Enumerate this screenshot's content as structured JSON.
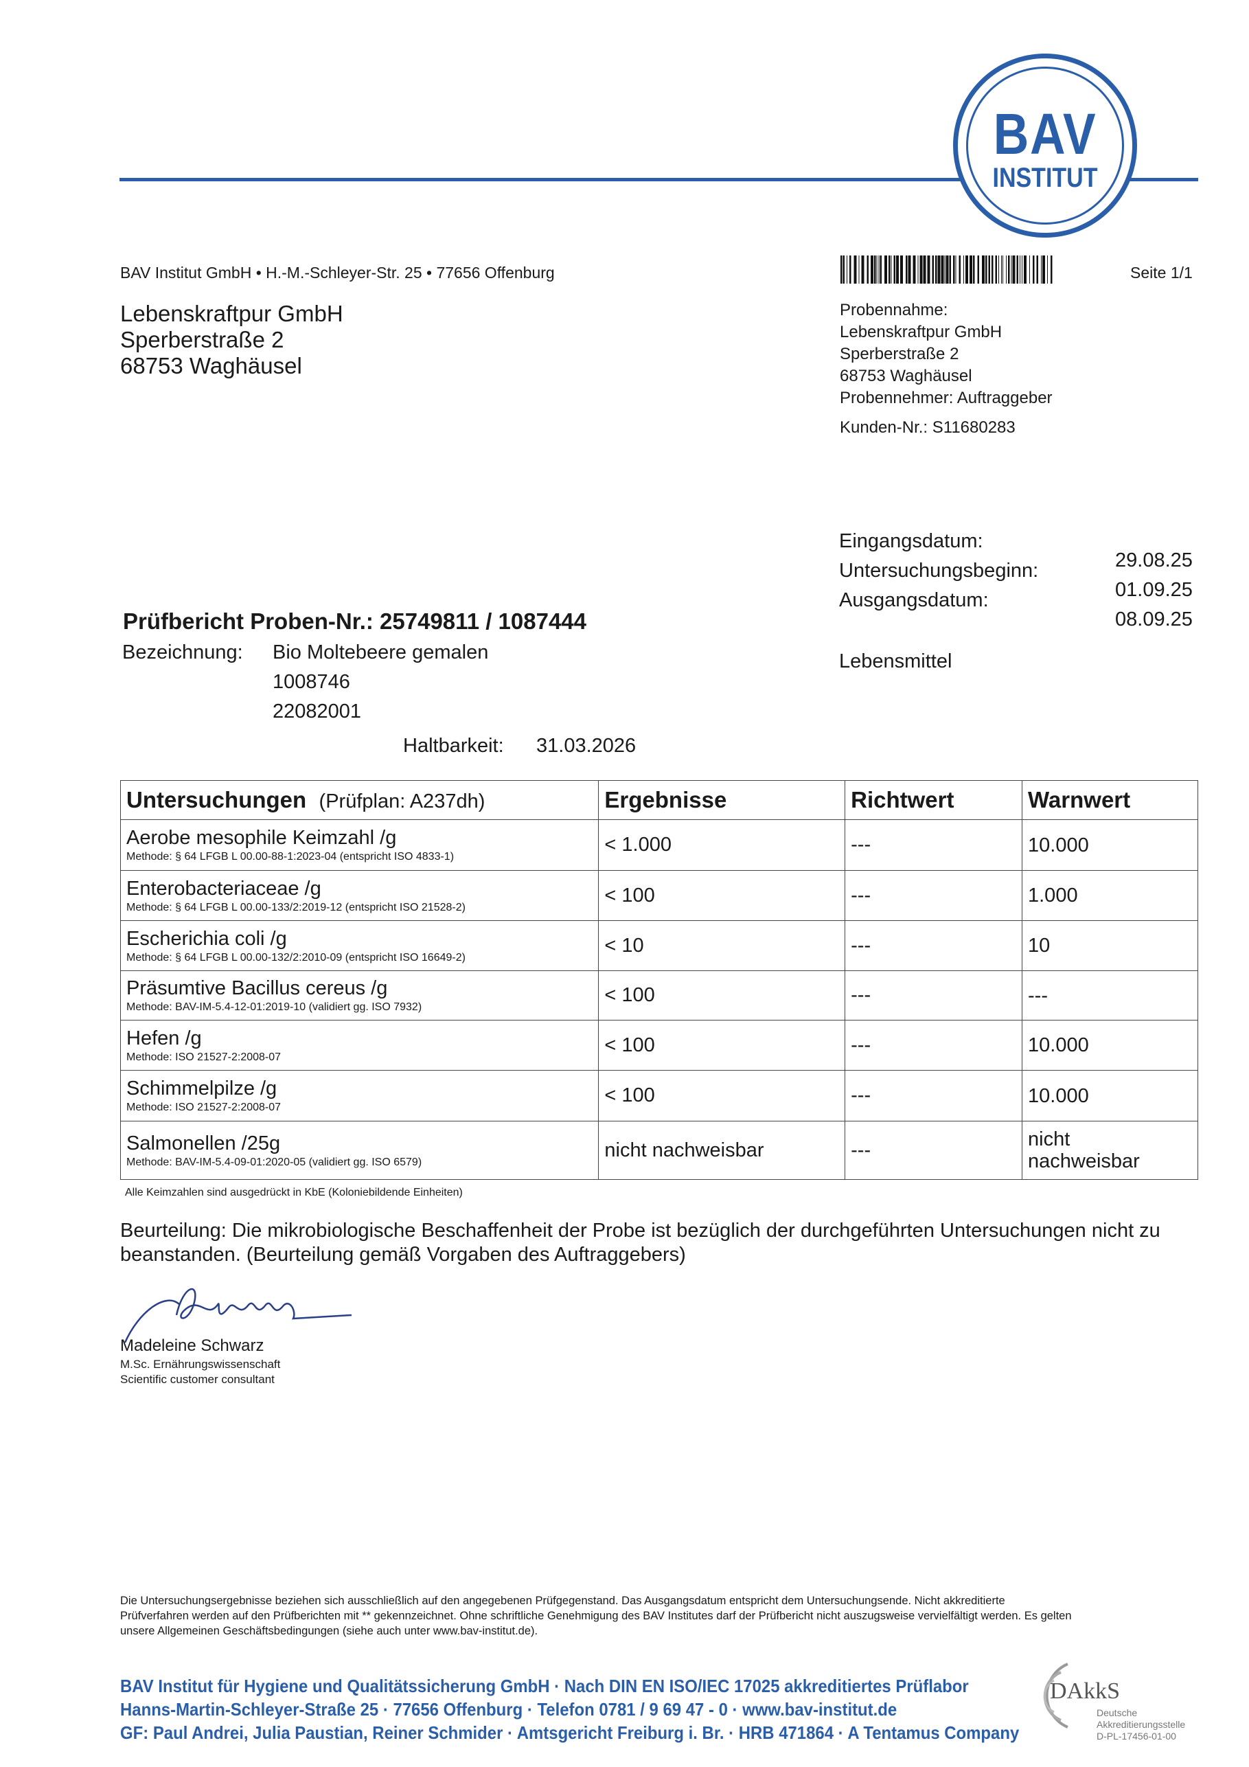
{
  "logo": {
    "line1": "BAV",
    "line2": "INSTITUT"
  },
  "sender": "BAV Institut GmbH • H.-M.-Schleyer-Str. 25 • 77656 Offenburg",
  "page": "Seite 1/1",
  "recipient": [
    "Lebenskraftpur GmbH",
    "Sperberstraße 2",
    "68753 Waghäusel"
  ],
  "sampling": [
    "Probennahme:",
    "Lebenskraftpur GmbH",
    "Sperberstraße 2",
    "68753 Waghäusel",
    "Probennehmer: Auftraggeber"
  ],
  "customer_no": "Kunden-Nr.: S11680283",
  "dates": {
    "labels": [
      "Eingangsdatum:",
      "Untersuchungsbeginn:",
      "Ausgangsdatum:"
    ],
    "values": [
      "29.08.25",
      "01.09.25",
      "08.09.25"
    ]
  },
  "category": "Lebensmittel",
  "report_title": "Prüfbericht Proben-Nr.: 25749811 / 1087444",
  "designation": {
    "label": "Bezeichnung:",
    "lines": [
      "Bio Moltebeere gemalen",
      "1008746",
      "22082001"
    ]
  },
  "shelf_life": {
    "label": "Haltbarkeit:",
    "value": "31.03.2026"
  },
  "table": {
    "headers": {
      "test": "Untersuchungen",
      "plan": "(Prüfplan: A237dh)",
      "result": "Ergebnisse",
      "guide": "Richtwert",
      "warn": "Warnwert"
    },
    "rows": [
      {
        "name": "Aerobe mesophile Keimzahl /g",
        "method": "Methode: § 64 LFGB L 00.00-88-1:2023-04 (entspricht ISO 4833-1)",
        "result": "< 1.000",
        "guide": "---",
        "warn": "10.000"
      },
      {
        "name": "Enterobacteriaceae /g",
        "method": "Methode: § 64 LFGB L 00.00-133/2:2019-12 (entspricht ISO 21528-2)",
        "result": "< 100",
        "guide": "---",
        "warn": "1.000"
      },
      {
        "name": "Escherichia coli /g",
        "method": "Methode: § 64 LFGB L 00.00-132/2:2010-09 (entspricht ISO 16649-2)",
        "result": "< 10",
        "guide": "---",
        "warn": "10"
      },
      {
        "name": "Präsumtive Bacillus cereus /g",
        "method": "Methode: BAV-IM-5.4-12-01:2019-10 (validiert gg. ISO 7932)",
        "result": "< 100",
        "guide": "---",
        "warn": "---"
      },
      {
        "name": "Hefen /g",
        "method": "Methode: ISO 21527-2:2008-07",
        "result": "< 100",
        "guide": "---",
        "warn": "10.000"
      },
      {
        "name": "Schimmelpilze /g",
        "method": "Methode: ISO 21527-2:2008-07",
        "result": "< 100",
        "guide": "---",
        "warn": "10.000"
      },
      {
        "name": "Salmonellen /25g",
        "method": "Methode: BAV-IM-5.4-09-01:2020-05 (validiert gg. ISO 6579)",
        "result": "nicht nachweisbar",
        "guide": "---",
        "warn": "nicht nachweisbar"
      }
    ]
  },
  "footnote": "Alle Keimzahlen sind ausgedrückt in KbE (Koloniebildende Einheiten)",
  "assessment": [
    "Beurteilung: Die mikrobiologische Beschaffenheit der Probe ist bezüglich der durchgeführten Untersuchungen nicht zu",
    "beanstanden. (Beurteilung gemäß Vorgaben des Auftraggebers)"
  ],
  "signatory": {
    "name": "Madeleine Schwarz",
    "title1": "M.Sc. Ernährungswissenschaft",
    "title2": "Scientific customer consultant"
  },
  "disclaimer": [
    "Die Untersuchungsergebnisse beziehen sich ausschließlich auf den angegebenen Prüfgegenstand. Das Ausgangsdatum entspricht dem Untersuchungsende. Nicht akkreditierte",
    "Prüfverfahren werden auf den Prüfberichten mit ** gekennzeichnet. Ohne schriftliche Genehmigung des BAV Institutes darf der Prüfbericht nicht auszugsweise vervielfältigt werden. Es gelten",
    "unsere Allgemeinen Geschäftsbedingungen (siehe auch unter www.bav-institut.de)."
  ],
  "footer": [
    "BAV Institut für Hygiene und Qualitätssicherung GmbH · Nach DIN EN ISO/IEC 17025 akkreditiertes Prüflabor",
    "Hanns-Martin-Schleyer-Straße 25 · 77656 Offenburg · Telefon 0781 / 9 69 47 - 0 · www.bav-institut.de",
    "GF: Paul Andrei, Julia Paustian, Reiner Schmider · Amtsgericht Freiburg i. Br. · HRB 471864 · A Tentamus Company"
  ],
  "dakks": {
    "name": "DAkkS",
    "line1": "Deutsche",
    "line2": "Akkreditierungsstelle",
    "line3": "D-PL-17456-01-00"
  },
  "colors": {
    "brand": "#2b5ea8"
  }
}
